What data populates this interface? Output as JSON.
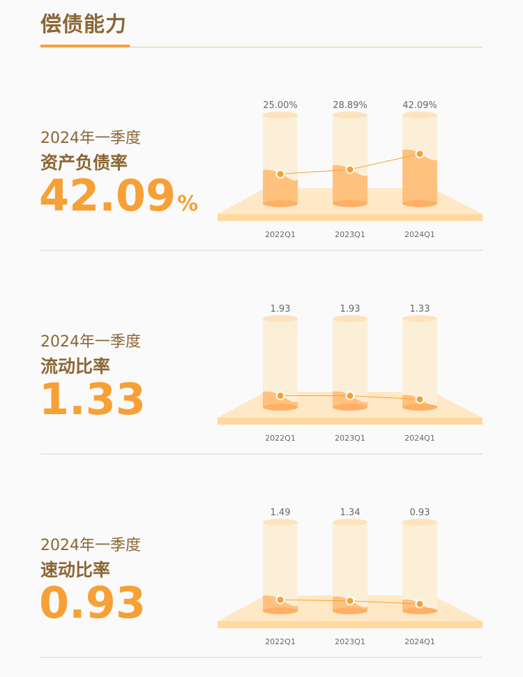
{
  "header": {
    "title": "偿债能力"
  },
  "colors": {
    "accent": "#f7a035",
    "brown": "#8b6634",
    "cyl_light": "#fcefd8",
    "cyl_fill": "#ffc27e",
    "platform": "#ffe2b4"
  },
  "sections": [
    {
      "period": "2024年一季度",
      "name": "资产负债率",
      "value": "42.09",
      "unit": "%"
    },
    {
      "period": "2024年一季度",
      "name": "流动比率",
      "value": "1.33",
      "unit": ""
    },
    {
      "period": "2024年一季度",
      "name": "速动比率",
      "value": "0.93",
      "unit": ""
    }
  ],
  "chart_data": [
    {
      "type": "bar",
      "categories": [
        "2022Q1",
        "2023Q1",
        "2024Q1"
      ],
      "values": [
        25.0,
        28.89,
        42.09
      ],
      "labels": [
        "25.00%",
        "28.89%",
        "42.09%"
      ],
      "overlay": "line"
    },
    {
      "type": "bar",
      "categories": [
        "2022Q1",
        "2023Q1",
        "2024Q1"
      ],
      "values": [
        1.93,
        1.93,
        1.33
      ],
      "labels": [
        "1.93",
        "1.93",
        "1.33"
      ],
      "overlay": "line"
    },
    {
      "type": "bar",
      "categories": [
        "2022Q1",
        "2023Q1",
        "2024Q1"
      ],
      "values": [
        1.49,
        1.34,
        0.93
      ],
      "labels": [
        "1.49",
        "1.34",
        "0.93"
      ],
      "overlay": "line"
    }
  ]
}
